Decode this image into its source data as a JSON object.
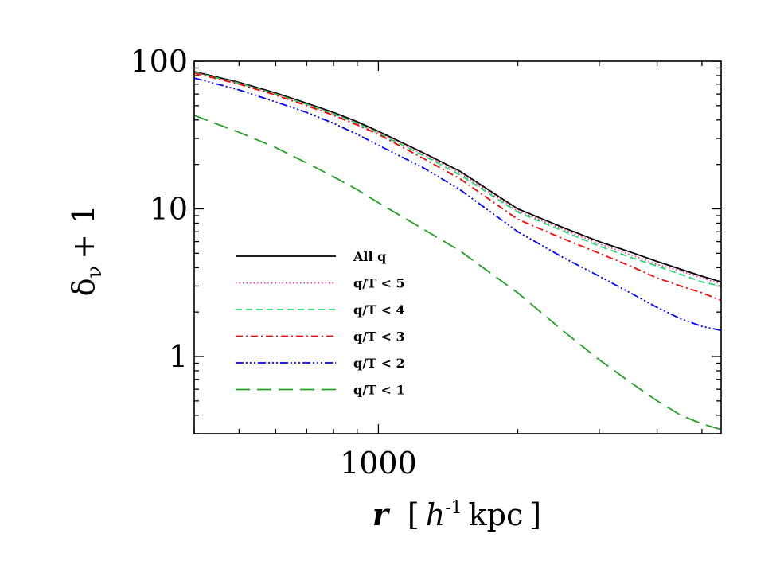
{
  "chart_data": {
    "type": "line",
    "xscale": "log",
    "yscale": "log",
    "xlim": [
      400,
      5500
    ],
    "ylim": [
      0.3,
      100
    ],
    "xticks": [
      {
        "value": 1000,
        "label": "1000"
      }
    ],
    "yticks": [
      {
        "value": 1,
        "label": "1"
      },
      {
        "value": 10,
        "label": "10"
      },
      {
        "value": 100,
        "label": "100"
      }
    ],
    "xlabel": {
      "main": "r",
      "open": "[",
      "var": "h",
      "sup": "-1",
      "unit": "kpc",
      "close": "]"
    },
    "ylabel": {
      "main": "δ",
      "sub": "ν",
      "tail": "+ 1"
    },
    "legend_position": "bottom-left",
    "series": [
      {
        "name": "All q",
        "color": "#000000",
        "dash": "solid",
        "x": [
          400,
          500,
          600,
          700,
          800,
          900,
          1000,
          1250,
          1500,
          2000,
          2500,
          3000,
          3500,
          4000,
          4500,
          5000,
          5500
        ],
        "y": [
          85,
          72,
          61,
          52,
          45,
          39,
          33.5,
          24,
          18,
          10,
          7.5,
          6,
          5.1,
          4.4,
          3.9,
          3.5,
          3.2
        ]
      },
      {
        "name": "q/T < 5",
        "color": "#ff2a8a",
        "dash": "dotted",
        "x": [
          400,
          500,
          600,
          700,
          800,
          900,
          1000,
          1250,
          1500,
          2000,
          2500,
          3000,
          3500,
          4000,
          4500,
          5000,
          5500
        ],
        "y": [
          84,
          71,
          60,
          51,
          44,
          38,
          33,
          23.5,
          17.5,
          9.7,
          7.3,
          5.8,
          4.9,
          4.2,
          3.8,
          3.4,
          3.1
        ]
      },
      {
        "name": "q/T < 4",
        "color": "#1edc6e",
        "dash": "dashed",
        "x": [
          400,
          500,
          600,
          700,
          800,
          900,
          1000,
          1250,
          1500,
          2000,
          2500,
          3000,
          3500,
          4000,
          4500,
          5000,
          5500
        ],
        "y": [
          84,
          71,
          60,
          51,
          44,
          38,
          32.5,
          23,
          17,
          9.5,
          7.1,
          5.6,
          4.7,
          4.1,
          3.6,
          3.2,
          3.0
        ]
      },
      {
        "name": "q/T < 3",
        "color": "#ff0000",
        "dash": "dashdot",
        "x": [
          400,
          500,
          600,
          700,
          800,
          900,
          1000,
          1250,
          1500,
          2000,
          2500,
          3000,
          3500,
          4000,
          4500,
          5000,
          5500
        ],
        "y": [
          83,
          70,
          59,
          50,
          43,
          37,
          32,
          22,
          16,
          8.5,
          6.3,
          5.0,
          4.1,
          3.4,
          3.0,
          2.7,
          2.4
        ]
      },
      {
        "name": "q/T < 2",
        "color": "#0000ff",
        "dash": "dashdotdotdot",
        "x": [
          400,
          500,
          600,
          700,
          800,
          900,
          1000,
          1250,
          1500,
          2000,
          2500,
          3000,
          3500,
          4000,
          4500,
          5000,
          5500
        ],
        "y": [
          77,
          64,
          53,
          45,
          38,
          32,
          27,
          19,
          13.5,
          7,
          4.7,
          3.5,
          2.7,
          2.15,
          1.8,
          1.6,
          1.5
        ]
      },
      {
        "name": "q/T < 1",
        "color": "#22a022",
        "dash": "longdash",
        "x": [
          400,
          500,
          600,
          700,
          800,
          900,
          1000,
          1250,
          1500,
          2000,
          2500,
          3000,
          3500,
          4000,
          4500,
          5000,
          5500
        ],
        "y": [
          43,
          33,
          26,
          20.5,
          16.5,
          13.5,
          11,
          7.3,
          5.2,
          2.7,
          1.5,
          0.95,
          0.67,
          0.5,
          0.4,
          0.35,
          0.32
        ]
      }
    ]
  }
}
